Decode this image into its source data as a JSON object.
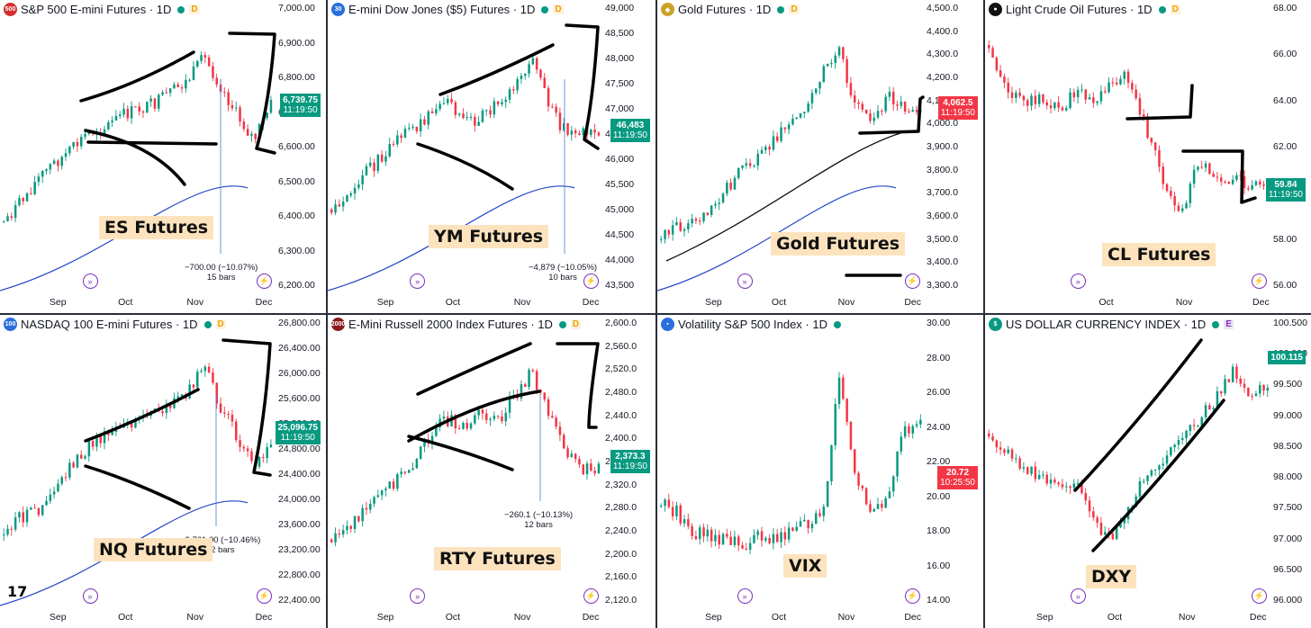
{
  "panels": [
    {
      "id": "es",
      "title": "S&P 500 E-mini Futures · 1D",
      "logo_text": "500",
      "logo_color": "#d32f2f",
      "badge": "D",
      "badge_color": "#f0a100",
      "label": "ES Futures",
      "price": "6,739.75",
      "timer": "11:19:50",
      "tag_color": "#089981",
      "yaxis": [
        "7,000.00",
        "6,900.00",
        "6,800.00",
        "6,700.00",
        "6,600.00",
        "6,500.00",
        "6,400.00",
        "6,300.00",
        "6,200.00"
      ],
      "xaxis": [
        "Sep",
        "Oct",
        "Nov",
        "Dec"
      ],
      "measure": "−700.00 (−10.07%)",
      "measure_bars": "15 bars"
    },
    {
      "id": "ym",
      "title": "E-mini Dow Jones ($5) Futures · 1D",
      "logo_text": "30",
      "logo_color": "#2a6fdb",
      "badge": "D",
      "badge_color": "#f0a100",
      "label": "YM Futures",
      "price": "46,483",
      "timer": "11:19:50",
      "tag_color": "#089981",
      "yaxis": [
        "49,000",
        "48,500",
        "48,000",
        "47,500",
        "47,000",
        "46,500",
        "46,000",
        "45,500",
        "45,000",
        "44,500",
        "44,000",
        "43,500"
      ],
      "xaxis": [
        "Sep",
        "Oct",
        "Nov",
        "Dec"
      ],
      "measure": "−4,879 (−10.05%)",
      "measure_bars": "10 bars"
    },
    {
      "id": "gold",
      "title": "Gold Futures · 1D",
      "logo_text": "◆",
      "logo_color": "#c9a227",
      "badge": "D",
      "badge_color": "#f0a100",
      "label": "Gold Futures",
      "price": "4,062.5",
      "timer": "11:19:50",
      "tag_color": "#f23645",
      "yaxis": [
        "4,500.0",
        "4,400.0",
        "4,300.0",
        "4,200.0",
        "4,100.0",
        "4,000.0",
        "3,900.0",
        "3,800.0",
        "3,700.0",
        "3,600.0",
        "3,500.0",
        "3,400.0",
        "3,300.0"
      ],
      "xaxis": [
        "Sep",
        "Oct",
        "Nov",
        "Dec"
      ],
      "measure": "",
      "measure_bars": ""
    },
    {
      "id": "cl",
      "title": "Light Crude Oil Futures · 1D",
      "logo_text": "●",
      "logo_color": "#111111",
      "badge": "D",
      "badge_color": "#f0a100",
      "label": "CL Futures",
      "price": "59.84",
      "timer": "11:19:50",
      "tag_color": "#089981",
      "yaxis": [
        "68.00",
        "66.00",
        "64.00",
        "62.00",
        "60.00",
        "58.00",
        "56.00"
      ],
      "xaxis": [
        "Oct",
        "Nov",
        "Dec"
      ],
      "measure": "",
      "measure_bars": ""
    },
    {
      "id": "nq",
      "title": "NASDAQ 100 E-mini Futures · 1D",
      "logo_text": "100",
      "logo_color": "#2a6fdb",
      "badge": "D",
      "badge_color": "#f0a100",
      "label": "NQ Futures",
      "price": "25,096.75",
      "timer": "11:19:50",
      "tag_color": "#089981",
      "yaxis": [
        "26,800.00",
        "26,400.00",
        "26,000.00",
        "25,600.00",
        "25,200.00",
        "24,800.00",
        "24,400.00",
        "24,000.00",
        "23,600.00",
        "23,200.00",
        "22,800.00",
        "22,400.00"
      ],
      "xaxis": [
        "Sep",
        "Oct",
        "Nov",
        "Dec"
      ],
      "measure": "−2,761.00 (−10.46%)",
      "measure_bars": "12 bars"
    },
    {
      "id": "rty",
      "title": "E-Mini Russell 2000 Index Futures · 1D",
      "logo_text": "2000",
      "logo_color": "#8b1a1a",
      "badge": "D",
      "badge_color": "#f0a100",
      "label": "RTY Futures",
      "price": "2,373.3",
      "timer": "11:19:50",
      "tag_color": "#089981",
      "yaxis": [
        "2,600.0",
        "2,560.0",
        "2,520.0",
        "2,480.0",
        "2,440.0",
        "2,400.0",
        "2,360.0",
        "2,320.0",
        "2,280.0",
        "2,240.0",
        "2,200.0",
        "2,160.0",
        "2,120.0"
      ],
      "xaxis": [
        "Sep",
        "Oct",
        "Nov",
        "Dec"
      ],
      "measure": "−260.1 (−10.13%)",
      "measure_bars": "12 bars"
    },
    {
      "id": "vix",
      "title": "Volatility S&P 500 Index · 1D",
      "logo_text": "▪",
      "logo_color": "#2a6fdb",
      "badge": "",
      "badge_color": "",
      "label": "VIX",
      "price": "20.72",
      "timer": "10:25:50",
      "tag_color": "#f23645",
      "yaxis": [
        "30.00",
        "28.00",
        "26.00",
        "24.00",
        "22.00",
        "20.00",
        "18.00",
        "16.00",
        "14.00"
      ],
      "xaxis": [
        "Sep",
        "Oct",
        "Nov",
        "Dec"
      ],
      "measure": "",
      "measure_bars": ""
    },
    {
      "id": "dxy",
      "title": "US DOLLAR CURRENCY INDEX · 1D",
      "logo_text": "$",
      "logo_color": "#089981",
      "badge": "E",
      "badge_color": "#7b2fbe",
      "label": "DXY",
      "price": "100.115",
      "timer": "",
      "tag_color": "#089981",
      "yaxis": [
        "100.500",
        "100.000",
        "99.500",
        "99.000",
        "98.500",
        "98.000",
        "97.500",
        "97.000",
        "96.500",
        "96.000"
      ],
      "xaxis": [
        "Sep",
        "Oct",
        "Nov",
        "Dec"
      ],
      "measure": "",
      "measure_bars": ""
    }
  ],
  "tv_logo": "17"
}
